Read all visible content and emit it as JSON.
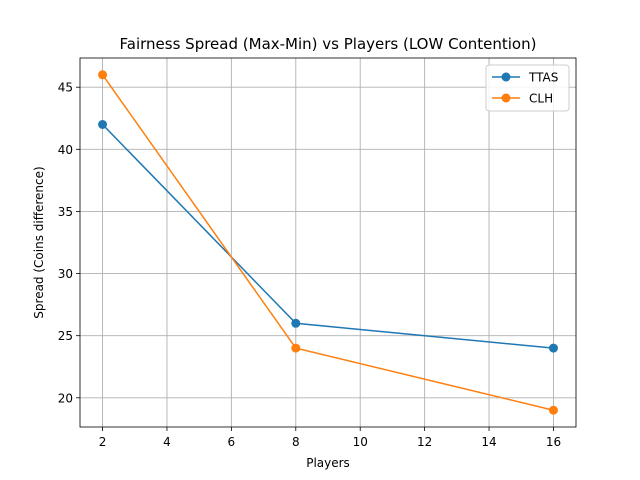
{
  "chart_data": {
    "type": "line",
    "title": "Fairness Spread (Max-Min) vs Players (LOW Contention)",
    "xlabel": "Players",
    "ylabel": "Spread (Coins difference)",
    "x": [
      2,
      8,
      16
    ],
    "series": [
      {
        "name": "TTAS",
        "values": [
          42,
          26,
          24
        ],
        "color": "#1f77b4",
        "marker": "circle"
      },
      {
        "name": "CLH",
        "values": [
          46,
          24,
          19
        ],
        "color": "#ff7f0e",
        "marker": "circle"
      }
    ],
    "xlim": [
      1.3,
      16.7
    ],
    "ylim": [
      17.65,
      47.35
    ],
    "xticks": [
      2,
      4,
      6,
      8,
      10,
      12,
      14,
      16
    ],
    "yticks": [
      20,
      25,
      30,
      35,
      40,
      45
    ],
    "xtick_labels": [
      "2",
      "4",
      "6",
      "8",
      "10",
      "12",
      "14",
      "16"
    ],
    "ytick_labels": [
      "20",
      "25",
      "30",
      "35",
      "40",
      "45"
    ],
    "grid": true,
    "legend_position": "top-right"
  }
}
